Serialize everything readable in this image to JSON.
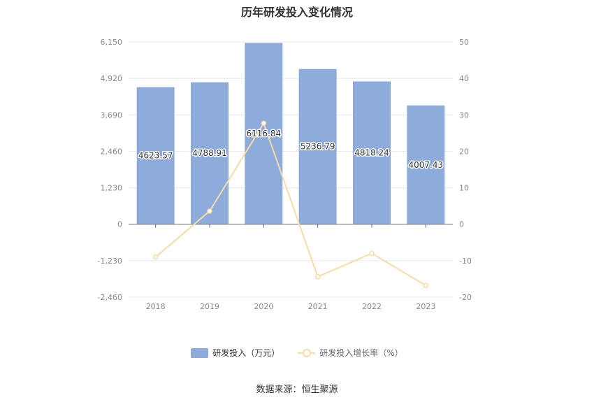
{
  "chart_data": {
    "type": "bar",
    "title": "历年研发投入变化情况",
    "categories": [
      "2018",
      "2019",
      "2020",
      "2021",
      "2022",
      "2023"
    ],
    "series": [
      {
        "name": "研发投入（万元）",
        "type": "bar",
        "axis": "left",
        "color": "#8eacdb",
        "values": [
          4623.57,
          4788.91,
          6116.84,
          5236.79,
          4818.24,
          4007.43
        ],
        "labels": [
          "4623.57",
          "4788.91",
          "6116.84",
          "5236.79",
          "4818.24",
          "4007.43"
        ]
      },
      {
        "name": "研发投入增长率（%）",
        "type": "line",
        "axis": "right",
        "color": "#f8dba6",
        "values": [
          -9,
          3.6,
          27.7,
          -14.4,
          -8,
          -16.8
        ]
      }
    ],
    "y_left": {
      "ylim": [
        -2460,
        6150
      ],
      "ticks": [
        "6,150",
        "4,920",
        "3,690",
        "2,460",
        "1,230",
        "0",
        "-1,230",
        "-2,460"
      ]
    },
    "y_right": {
      "ylim": [
        -20,
        50
      ],
      "ticks": [
        "50",
        "40",
        "30",
        "20",
        "10",
        "0",
        "-10",
        "-20"
      ]
    },
    "grid": true,
    "legend_position": "bottom"
  },
  "source": "数据来源：恒生聚源"
}
